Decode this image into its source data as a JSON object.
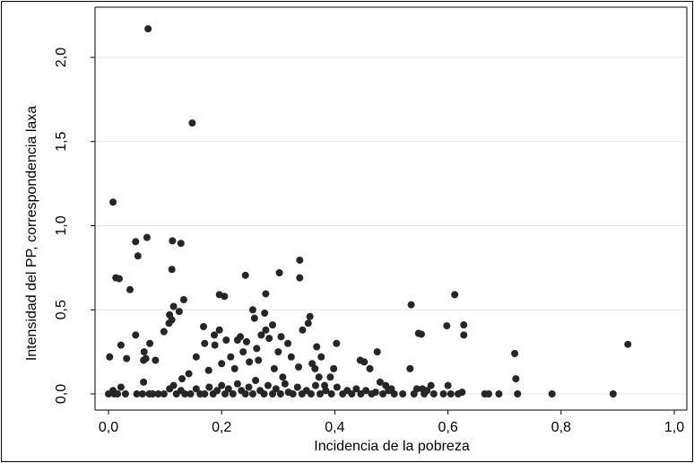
{
  "chart_data": {
    "type": "scatter",
    "xlabel": "Incidencia de la pobreza",
    "ylabel": "Intensidad del PP, correspondencia laxa",
    "xlim": [
      0,
      1.0
    ],
    "ylim": [
      0,
      2.0
    ],
    "x_ticks": [
      "0,0",
      "0,2",
      "0,4",
      "0,6",
      "0,8",
      "1,0"
    ],
    "y_ticks": [
      "0,0",
      "0,5",
      "1,0",
      "1,5",
      "2,0"
    ],
    "grid": true,
    "marker_color": "#262626",
    "points": [
      [
        0.07,
        2.17
      ],
      [
        0.148,
        1.61
      ],
      [
        0.008,
        1.14
      ],
      [
        0.068,
        0.93
      ],
      [
        0.113,
        0.91
      ],
      [
        0.128,
        0.895
      ],
      [
        0.048,
        0.905
      ],
      [
        0.052,
        0.82
      ],
      [
        0.112,
        0.74
      ],
      [
        0.013,
        0.69
      ],
      [
        0.019,
        0.685
      ],
      [
        0.038,
        0.62
      ],
      [
        0.338,
        0.795
      ],
      [
        0.302,
        0.72
      ],
      [
        0.242,
        0.705
      ],
      [
        0.338,
        0.69
      ],
      [
        0.196,
        0.59
      ],
      [
        0.205,
        0.58
      ],
      [
        0.278,
        0.595
      ],
      [
        0.133,
        0.56
      ],
      [
        0.115,
        0.52
      ],
      [
        0.125,
        0.49
      ],
      [
        0.108,
        0.47
      ],
      [
        0.112,
        0.44
      ],
      [
        0.098,
        0.37
      ],
      [
        0.107,
        0.42
      ],
      [
        0.535,
        0.53
      ],
      [
        0.612,
        0.59
      ],
      [
        0.628,
        0.41
      ],
      [
        0.598,
        0.405
      ],
      [
        0.548,
        0.36
      ],
      [
        0.553,
        0.355
      ],
      [
        0.628,
        0.35
      ],
      [
        0.718,
        0.24
      ],
      [
        0.72,
        0.09
      ],
      [
        0.918,
        0.295
      ],
      [
        0.002,
        0.22
      ],
      [
        0.022,
        0.29
      ],
      [
        0.032,
        0.21
      ],
      [
        0.048,
        0.35
      ],
      [
        0.063,
        0.25
      ],
      [
        0.062,
        0.2
      ],
      [
        0.066,
        0.21
      ],
      [
        0.062,
        0.07
      ],
      [
        0.073,
        0.3
      ],
      [
        0.083,
        0.2
      ],
      [
        0.142,
        0.12
      ],
      [
        0.13,
        0.09
      ],
      [
        0.155,
        0.22
      ],
      [
        0.168,
        0.4
      ],
      [
        0.17,
        0.3
      ],
      [
        0.177,
        0.14
      ],
      [
        0.187,
        0.35
      ],
      [
        0.188,
        0.29
      ],
      [
        0.196,
        0.38
      ],
      [
        0.2,
        0.18
      ],
      [
        0.208,
        0.32
      ],
      [
        0.216,
        0.22
      ],
      [
        0.223,
        0.15
      ],
      [
        0.228,
        0.32
      ],
      [
        0.233,
        0.34
      ],
      [
        0.238,
        0.25
      ],
      [
        0.244,
        0.31
      ],
      [
        0.249,
        0.19
      ],
      [
        0.255,
        0.5
      ],
      [
        0.258,
        0.45
      ],
      [
        0.262,
        0.27
      ],
      [
        0.265,
        0.2
      ],
      [
        0.27,
        0.35
      ],
      [
        0.276,
        0.48
      ],
      [
        0.278,
        0.38
      ],
      [
        0.284,
        0.33
      ],
      [
        0.29,
        0.41
      ],
      [
        0.293,
        0.15
      ],
      [
        0.3,
        0.25
      ],
      [
        0.305,
        0.34
      ],
      [
        0.308,
        0.1
      ],
      [
        0.317,
        0.3
      ],
      [
        0.323,
        0.22
      ],
      [
        0.336,
        0.16
      ],
      [
        0.343,
        0.38
      ],
      [
        0.353,
        0.42
      ],
      [
        0.356,
        0.46
      ],
      [
        0.36,
        0.18
      ],
      [
        0.365,
        0.15
      ],
      [
        0.368,
        0.28
      ],
      [
        0.372,
        0.1
      ],
      [
        0.376,
        0.22
      ],
      [
        0.382,
        0.05
      ],
      [
        0.392,
        0.1
      ],
      [
        0.398,
        0.15
      ],
      [
        0.403,
        0.3
      ],
      [
        0.445,
        0.2
      ],
      [
        0.452,
        0.19
      ],
      [
        0.462,
        0.15
      ],
      [
        0.475,
        0.25
      ],
      [
        0.48,
        0.07
      ],
      [
        0.49,
        0.05
      ],
      [
        0.5,
        0.03
      ],
      [
        0.533,
        0.15
      ],
      [
        0.545,
        0.03
      ],
      [
        0.555,
        0.03
      ],
      [
        0.563,
        0.02
      ],
      [
        0.57,
        0.05
      ],
      [
        0.6,
        0.05
      ],
      [
        0.625,
        0.01
      ],
      [
        0.0,
        0.0
      ],
      [
        0.008,
        0.02
      ],
      [
        0.01,
        0.0
      ],
      [
        0.016,
        0.0
      ],
      [
        0.022,
        0.04
      ],
      [
        0.03,
        0.0
      ],
      [
        0.05,
        0.0
      ],
      [
        0.06,
        0.0
      ],
      [
        0.072,
        0.0
      ],
      [
        0.078,
        0.0
      ],
      [
        0.088,
        0.0
      ],
      [
        0.098,
        0.0
      ],
      [
        0.108,
        0.03
      ],
      [
        0.115,
        0.05
      ],
      [
        0.12,
        0.0
      ],
      [
        0.128,
        0.02
      ],
      [
        0.135,
        0.0
      ],
      [
        0.145,
        0.0
      ],
      [
        0.155,
        0.03
      ],
      [
        0.162,
        0.0
      ],
      [
        0.17,
        0.0
      ],
      [
        0.178,
        0.04
      ],
      [
        0.185,
        0.0
      ],
      [
        0.192,
        0.02
      ],
      [
        0.2,
        0.05
      ],
      [
        0.206,
        0.0
      ],
      [
        0.212,
        0.03
      ],
      [
        0.22,
        0.0
      ],
      [
        0.228,
        0.06
      ],
      [
        0.235,
        0.02
      ],
      [
        0.242,
        0.0
      ],
      [
        0.248,
        0.04
      ],
      [
        0.255,
        0.0
      ],
      [
        0.26,
        0.08
      ],
      [
        0.268,
        0.02
      ],
      [
        0.275,
        0.0
      ],
      [
        0.282,
        0.05
      ],
      [
        0.29,
        0.0
      ],
      [
        0.296,
        0.03
      ],
      [
        0.304,
        0.0
      ],
      [
        0.312,
        0.06
      ],
      [
        0.318,
        0.01
      ],
      [
        0.326,
        0.0
      ],
      [
        0.334,
        0.04
      ],
      [
        0.342,
        0.0
      ],
      [
        0.35,
        0.02
      ],
      [
        0.358,
        0.0
      ],
      [
        0.366,
        0.05
      ],
      [
        0.374,
        0.0
      ],
      [
        0.384,
        0.02
      ],
      [
        0.394,
        0.0
      ],
      [
        0.404,
        0.04
      ],
      [
        0.414,
        0.0
      ],
      [
        0.422,
        0.02
      ],
      [
        0.43,
        0.0
      ],
      [
        0.438,
        0.03
      ],
      [
        0.446,
        0.0
      ],
      [
        0.455,
        0.02
      ],
      [
        0.465,
        0.0
      ],
      [
        0.472,
        0.01
      ],
      [
        0.485,
        0.0
      ],
      [
        0.495,
        0.02
      ],
      [
        0.505,
        0.0
      ],
      [
        0.52,
        0.0
      ],
      [
        0.54,
        0.0
      ],
      [
        0.558,
        0.0
      ],
      [
        0.575,
        0.0
      ],
      [
        0.592,
        0.0
      ],
      [
        0.605,
        0.0
      ],
      [
        0.618,
        0.0
      ],
      [
        0.665,
        0.0
      ],
      [
        0.672,
        0.0
      ],
      [
        0.69,
        0.0
      ],
      [
        0.723,
        0.0
      ],
      [
        0.784,
        0.0
      ],
      [
        0.892,
        0.0
      ]
    ]
  }
}
